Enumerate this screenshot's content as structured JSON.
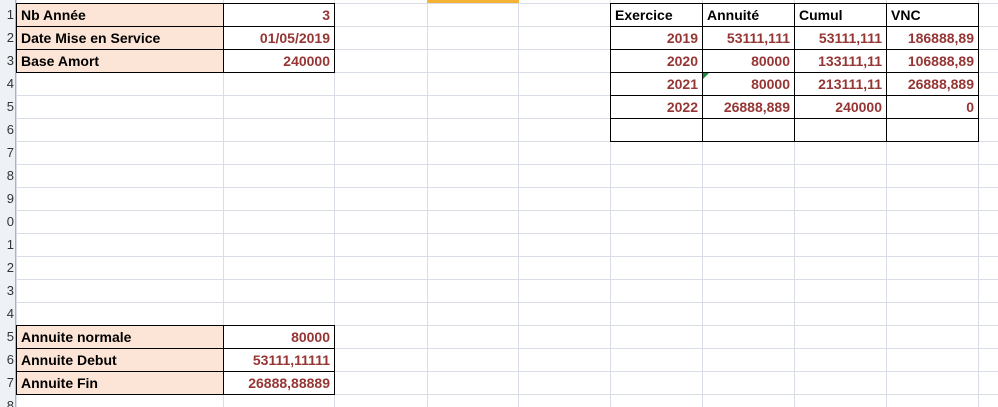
{
  "row_numbers": [
    "1",
    "2",
    "3",
    "4",
    "5",
    "6",
    "7",
    "8",
    "9",
    "0",
    "1",
    "2",
    "3",
    "4",
    "5",
    "6",
    "7",
    "8"
  ],
  "params": [
    {
      "label": "Nb Année",
      "value": "3"
    },
    {
      "label": "Date Mise en Service",
      "value": "01/05/2019"
    },
    {
      "label": "Base Amort",
      "value": "240000"
    }
  ],
  "annuities": [
    {
      "label": "Annuite normale",
      "value": "80000"
    },
    {
      "label": "Annuite Debut",
      "value": "53111,11111"
    },
    {
      "label": "Annuite Fin",
      "value": "26888,88889"
    }
  ],
  "table": {
    "headers": [
      "Exercice",
      "Annuité",
      "Cumul",
      "VNC"
    ],
    "rows": [
      [
        "2019",
        "53111,111",
        "53111,111",
        "186888,89"
      ],
      [
        "2020",
        "80000",
        "133111,11",
        "106888,89"
      ],
      [
        "2021",
        "80000",
        "213111,11",
        "26888,889"
      ],
      [
        "2022",
        "26888,889",
        "240000",
        "0"
      ]
    ]
  },
  "colors": {
    "label_fill": "#fce4d6",
    "value_text": "#963634",
    "selected_column_marker": "#f5b335"
  }
}
